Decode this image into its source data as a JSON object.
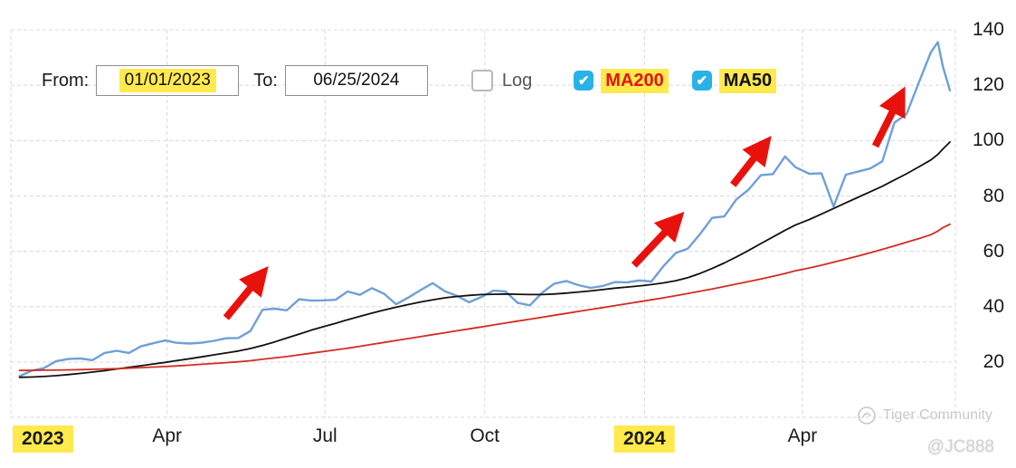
{
  "controls": {
    "from_label": "From:",
    "from_value": "01/01/2023",
    "to_label": "To:",
    "to_value": "06/25/2024",
    "log_label": "Log",
    "log_checked": false,
    "ma200_label": "MA200",
    "ma200_checked": true,
    "ma50_label": "MA50",
    "ma50_checked": true,
    "check_glyph": "✔"
  },
  "watermark": {
    "community": "Tiger Community",
    "handle": "@JC888"
  },
  "colors": {
    "highlight_yellow": "#ffe94d",
    "checkbox_blue": "#29b2e8",
    "price_blue": "#6f9fd8",
    "ma50_black": "#111111",
    "ma200_red": "#d22c21",
    "arrow_red": "#e8120c",
    "grid_gray": "#d8d8d8"
  },
  "chart_data": {
    "type": "line",
    "title": "",
    "xlabel": "",
    "ylabel": "",
    "legend_position": "top-controls",
    "grid": true,
    "x_axis": {
      "start": "2023-01-01",
      "end": "2024-06-25",
      "ticks": [
        {
          "date": "2023-01-01",
          "label": "2023",
          "highlight": true,
          "align": "left"
        },
        {
          "date": "2023-04-01",
          "label": "Apr",
          "highlight": false
        },
        {
          "date": "2023-07-01",
          "label": "Jul",
          "highlight": false
        },
        {
          "date": "2023-10-01",
          "label": "Oct",
          "highlight": false
        },
        {
          "date": "2024-01-01",
          "label": "2024",
          "highlight": true
        },
        {
          "date": "2024-04-01",
          "label": "Apr",
          "highlight": false
        }
      ]
    },
    "y_axis": {
      "side": "right",
      "ticks": [
        20,
        40,
        60,
        80,
        100,
        120,
        140
      ],
      "range": [
        0,
        145
      ]
    },
    "dates": [
      "2023-01-06",
      "2023-01-13",
      "2023-01-20",
      "2023-01-27",
      "2023-02-03",
      "2023-02-10",
      "2023-02-17",
      "2023-02-24",
      "2023-03-03",
      "2023-03-10",
      "2023-03-17",
      "2023-03-24",
      "2023-03-31",
      "2023-04-06",
      "2023-04-14",
      "2023-04-21",
      "2023-04-28",
      "2023-05-05",
      "2023-05-12",
      "2023-05-19",
      "2023-05-26",
      "2023-06-02",
      "2023-06-09",
      "2023-06-16",
      "2023-06-23",
      "2023-06-30",
      "2023-07-07",
      "2023-07-14",
      "2023-07-21",
      "2023-07-28",
      "2023-08-04",
      "2023-08-11",
      "2023-08-18",
      "2023-08-25",
      "2023-09-01",
      "2023-09-08",
      "2023-09-15",
      "2023-09-22",
      "2023-09-29",
      "2023-10-06",
      "2023-10-13",
      "2023-10-20",
      "2023-10-27",
      "2023-11-03",
      "2023-11-10",
      "2023-11-17",
      "2023-11-24",
      "2023-12-01",
      "2023-12-08",
      "2023-12-15",
      "2023-12-22",
      "2023-12-29",
      "2024-01-05",
      "2024-01-12",
      "2024-01-19",
      "2024-01-26",
      "2024-02-02",
      "2024-02-09",
      "2024-02-16",
      "2024-02-23",
      "2024-03-01",
      "2024-03-08",
      "2024-03-15",
      "2024-03-22",
      "2024-03-28",
      "2024-04-05",
      "2024-04-12",
      "2024-04-19",
      "2024-04-26",
      "2024-05-03",
      "2024-05-10",
      "2024-05-17",
      "2024-05-24",
      "2024-05-31",
      "2024-06-07",
      "2024-06-14",
      "2024-06-18",
      "2024-06-21",
      "2024-06-25"
    ],
    "series": [
      {
        "name": "Price",
        "color": "#6f9fd8",
        "width": 2.4,
        "values": [
          14.9,
          16.9,
          17.8,
          20.3,
          21.1,
          21.3,
          20.7,
          23.3,
          24.1,
          23.3,
          25.7,
          26.8,
          27.8,
          27.0,
          26.7,
          27.0,
          27.7,
          28.6,
          28.7,
          31.2,
          38.9,
          39.3,
          38.7,
          42.7,
          42.2,
          42.3,
          42.5,
          45.5,
          44.3,
          46.7,
          44.7,
          40.9,
          43.3,
          46.0,
          48.5,
          45.6,
          43.9,
          41.6,
          43.5,
          45.8,
          45.5,
          41.4,
          40.5,
          45.0,
          48.3,
          49.3,
          47.8,
          46.8,
          47.5,
          48.9,
          48.8,
          49.5,
          49.1,
          54.7,
          59.4,
          61.0,
          66.2,
          72.1,
          72.6,
          78.8,
          82.3,
          87.5,
          87.9,
          94.3,
          90.4,
          88.0,
          88.2,
          76.2,
          87.7,
          88.8,
          89.9,
          92.5,
          106.5,
          109.6,
          120.9,
          131.9,
          135.6,
          126.6,
          118.1
        ]
      },
      {
        "name": "MA50",
        "color": "#111111",
        "width": 1.8,
        "values": [
          14.5,
          14.6,
          14.8,
          15.1,
          15.5,
          15.9,
          16.4,
          16.9,
          17.5,
          18.1,
          18.7,
          19.3,
          19.9,
          20.5,
          21.2,
          21.9,
          22.6,
          23.3,
          24.0,
          24.9,
          26.0,
          27.3,
          28.7,
          30.1,
          31.5,
          32.8,
          34.0,
          35.3,
          36.5,
          37.7,
          38.8,
          39.8,
          40.8,
          41.7,
          42.5,
          43.2,
          43.7,
          44.1,
          44.4,
          44.5,
          44.6,
          44.5,
          44.4,
          44.4,
          44.6,
          44.9,
          45.3,
          45.7,
          46.2,
          46.7,
          47.1,
          47.5,
          48.0,
          48.6,
          49.4,
          50.5,
          52.0,
          53.8,
          55.8,
          58.0,
          60.3,
          62.8,
          65.2,
          67.6,
          69.5,
          71.5,
          73.5,
          75.5,
          77.5,
          79.5,
          81.5,
          83.5,
          85.8,
          88.0,
          90.5,
          93.0,
          95.0,
          97.0,
          99.5
        ]
      },
      {
        "name": "MA200",
        "color": "#d22c21",
        "width": 1.8,
        "values": [
          17.0,
          17.0,
          17.1,
          17.1,
          17.2,
          17.3,
          17.4,
          17.5,
          17.6,
          17.8,
          18.0,
          18.2,
          18.4,
          18.6,
          18.9,
          19.2,
          19.5,
          19.8,
          20.1,
          20.5,
          21.0,
          21.5,
          22.0,
          22.6,
          23.2,
          23.8,
          24.4,
          25.0,
          25.7,
          26.4,
          27.1,
          27.8,
          28.5,
          29.2,
          29.9,
          30.6,
          31.3,
          32.0,
          32.7,
          33.4,
          34.1,
          34.8,
          35.5,
          36.2,
          36.9,
          37.6,
          38.3,
          39.0,
          39.7,
          40.4,
          41.1,
          41.8,
          42.5,
          43.2,
          44.0,
          44.8,
          45.6,
          46.4,
          47.3,
          48.2,
          49.1,
          50.0,
          51.0,
          52.0,
          53.0,
          54.0,
          55.0,
          56.1,
          57.2,
          58.3,
          59.5,
          60.7,
          62.0,
          63.3,
          64.6,
          66.0,
          67.3,
          68.6,
          69.8
        ]
      }
    ],
    "annotations": {
      "color": "#e8120c",
      "arrows": [
        {
          "from": {
            "date": "2023-05-05",
            "value": 36.0
          },
          "to": {
            "date": "2023-05-22",
            "value": 49.0
          }
        },
        {
          "from": {
            "date": "2023-12-26",
            "value": 55.0
          },
          "to": {
            "date": "2024-01-16",
            "value": 69.0
          }
        },
        {
          "from": {
            "date": "2024-02-21",
            "value": 84.0
          },
          "to": {
            "date": "2024-03-07",
            "value": 96.0
          }
        },
        {
          "from": {
            "date": "2024-05-13",
            "value": 98.0
          },
          "to": {
            "date": "2024-05-25",
            "value": 113.0
          }
        }
      ]
    }
  }
}
